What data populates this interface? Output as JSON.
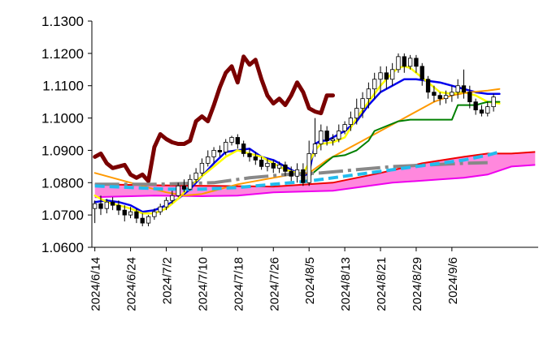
{
  "chart_data": {
    "type": "line",
    "title": "",
    "xlabel": "",
    "ylabel": "",
    "ylim": [
      1.06,
      1.13
    ],
    "y_ticks": [
      "1.0600",
      "1.0700",
      "1.0800",
      "1.0900",
      "1.1000",
      "1.1100",
      "1.1200",
      "1.1300"
    ],
    "x_tick_labels": [
      "2024/6/14",
      "2024/6/24",
      "2024/7/2",
      "2024/7/10",
      "2024/7/18",
      "2024/7/26",
      "2024/8/5",
      "2024/8/13",
      "2024/8/21",
      "2024/8/29",
      "2024/9/6"
    ],
    "x_tick_index": [
      0,
      6,
      12,
      18,
      24,
      30,
      36,
      42,
      48,
      54,
      60
    ],
    "n_points": 75,
    "grid": false,
    "legend": "none",
    "cloud": {
      "span_a": [
        [
          0,
          1.0795
        ],
        [
          10,
          1.0792
        ],
        [
          20,
          1.079
        ],
        [
          30,
          1.0788
        ],
        [
          40,
          1.08
        ],
        [
          48,
          1.083
        ],
        [
          55,
          1.086
        ],
        [
          62,
          1.088
        ],
        [
          66,
          1.089
        ],
        [
          70,
          1.089
        ],
        [
          74,
          1.0895
        ]
      ],
      "span_b": [
        [
          0,
          1.0755
        ],
        [
          10,
          1.076
        ],
        [
          18,
          1.0758
        ],
        [
          24,
          1.076
        ],
        [
          30,
          1.077
        ],
        [
          40,
          1.0775
        ],
        [
          46,
          1.079
        ],
        [
          50,
          1.08
        ],
        [
          58,
          1.081
        ],
        [
          62,
          1.0815
        ],
        [
          66,
          1.0825
        ],
        [
          70,
          1.085
        ],
        [
          74,
          1.0855
        ]
      ],
      "upper_color": "#ee0000",
      "lower_color": "#ee00ee",
      "fill_color": "#ff88dd"
    },
    "candles": [
      [
        0,
        1.072,
        1.0735,
        1.0745,
        1.0675
      ],
      [
        1,
        1.0735,
        1.072,
        1.076,
        1.07
      ],
      [
        2,
        1.072,
        1.074,
        1.075,
        1.0705
      ],
      [
        3,
        1.074,
        1.073,
        1.0755,
        1.0715
      ],
      [
        4,
        1.073,
        1.0715,
        1.0745,
        1.07
      ],
      [
        5,
        1.0715,
        1.07,
        1.073,
        1.068
      ],
      [
        6,
        1.07,
        1.071,
        1.0725,
        1.069
      ],
      [
        7,
        1.071,
        1.069,
        1.072,
        1.0675
      ],
      [
        8,
        1.069,
        1.0675,
        1.0705,
        1.0665
      ],
      [
        9,
        1.0675,
        1.0695,
        1.07,
        1.0665
      ],
      [
        10,
        1.0695,
        1.071,
        1.072,
        1.0685
      ],
      [
        11,
        1.071,
        1.0725,
        1.0735,
        1.07
      ],
      [
        12,
        1.0725,
        1.0745,
        1.0755,
        1.0715
      ],
      [
        13,
        1.0745,
        1.076,
        1.0775,
        1.0735
      ],
      [
        14,
        1.076,
        1.079,
        1.08,
        1.0755
      ],
      [
        15,
        1.079,
        1.078,
        1.081,
        1.077
      ],
      [
        16,
        1.078,
        1.081,
        1.0825,
        1.0775
      ],
      [
        17,
        1.081,
        1.083,
        1.0845,
        1.08
      ],
      [
        18,
        1.083,
        1.086,
        1.0875,
        1.082
      ],
      [
        19,
        1.086,
        1.088,
        1.09,
        1.085
      ],
      [
        20,
        1.088,
        1.09,
        1.091,
        1.086
      ],
      [
        21,
        1.09,
        1.0895,
        1.0915,
        1.088
      ],
      [
        22,
        1.0895,
        1.0925,
        1.0935,
        1.0885
      ],
      [
        23,
        1.0925,
        1.094,
        1.0945,
        1.0915
      ],
      [
        24,
        1.094,
        1.092,
        1.095,
        1.0905
      ],
      [
        25,
        1.092,
        1.089,
        1.093,
        1.088
      ],
      [
        26,
        1.089,
        1.088,
        1.0905,
        1.0865
      ],
      [
        27,
        1.088,
        1.087,
        1.0895,
        1.0855
      ],
      [
        28,
        1.087,
        1.085,
        1.088,
        1.084
      ],
      [
        29,
        1.085,
        1.086,
        1.0875,
        1.0835
      ],
      [
        30,
        1.086,
        1.0845,
        1.087,
        1.083
      ],
      [
        31,
        1.0845,
        1.0855,
        1.0865,
        1.083
      ],
      [
        32,
        1.0855,
        1.0835,
        1.0865,
        1.082
      ],
      [
        33,
        1.0835,
        1.082,
        1.085,
        1.0805
      ],
      [
        34,
        1.082,
        1.084,
        1.086,
        1.08
      ],
      [
        35,
        1.084,
        1.08,
        1.086,
        1.079
      ],
      [
        36,
        1.08,
        1.089,
        1.093,
        1.079
      ],
      [
        37,
        1.089,
        1.092,
        1.1,
        1.088
      ],
      [
        38,
        1.092,
        1.096,
        1.098,
        1.09
      ],
      [
        39,
        1.096,
        1.093,
        1.0975,
        1.0915
      ],
      [
        40,
        1.093,
        1.0935,
        1.095,
        1.0915
      ],
      [
        41,
        1.0935,
        1.096,
        1.098,
        1.0925
      ],
      [
        42,
        1.096,
        1.098,
        1.099,
        1.095
      ],
      [
        43,
        1.098,
        1.1,
        1.102,
        1.096
      ],
      [
        44,
        1.1,
        1.103,
        1.106,
        1.098
      ],
      [
        45,
        1.103,
        1.106,
        1.108,
        1.1
      ],
      [
        46,
        1.106,
        1.109,
        1.111,
        1.103
      ],
      [
        47,
        1.109,
        1.112,
        1.114,
        1.106
      ],
      [
        48,
        1.112,
        1.114,
        1.116,
        1.108
      ],
      [
        49,
        1.114,
        1.112,
        1.116,
        1.109
      ],
      [
        50,
        1.112,
        1.115,
        1.117,
        1.11
      ],
      [
        51,
        1.115,
        1.119,
        1.12,
        1.114
      ],
      [
        52,
        1.119,
        1.116,
        1.12,
        1.114
      ],
      [
        53,
        1.116,
        1.1185,
        1.1195,
        1.115
      ],
      [
        54,
        1.1185,
        1.116,
        1.1195,
        1.114
      ],
      [
        55,
        1.116,
        1.112,
        1.117,
        1.11
      ],
      [
        56,
        1.112,
        1.108,
        1.113,
        1.106
      ],
      [
        57,
        1.108,
        1.107,
        1.11,
        1.105
      ],
      [
        58,
        1.107,
        1.106,
        1.108,
        1.104
      ],
      [
        59,
        1.106,
        1.107,
        1.1085,
        1.1045
      ],
      [
        60,
        1.107,
        1.108,
        1.11,
        1.105
      ],
      [
        61,
        1.108,
        1.11,
        1.112,
        1.106
      ],
      [
        62,
        1.11,
        1.108,
        1.115,
        1.106
      ],
      [
        63,
        1.108,
        1.105,
        1.11,
        1.103
      ],
      [
        64,
        1.105,
        1.1025,
        1.106,
        1.101
      ],
      [
        65,
        1.1025,
        1.1015,
        1.104,
        1.1005
      ],
      [
        66,
        1.1015,
        1.1035,
        1.105,
        1.1005
      ],
      [
        67,
        1.1035,
        1.1065,
        1.1075,
        1.102
      ]
    ],
    "series": [
      {
        "color": "#7a0000",
        "width": 5,
        "points": [
          [
            0,
            1.088
          ],
          [
            1,
            1.089
          ],
          [
            2,
            1.086
          ],
          [
            3,
            1.0845
          ],
          [
            4,
            1.085
          ],
          [
            5,
            1.0855
          ],
          [
            6,
            1.0825
          ],
          [
            7,
            1.0815
          ],
          [
            8,
            1.0825
          ],
          [
            9,
            1.0805
          ],
          [
            10,
            1.091
          ],
          [
            11,
            1.095
          ],
          [
            12,
            1.0935
          ],
          [
            13,
            1.0925
          ],
          [
            14,
            1.092
          ],
          [
            15,
            1.092
          ],
          [
            16,
            1.093
          ],
          [
            17,
            1.099
          ],
          [
            18,
            1.1005
          ],
          [
            19,
            1.099
          ],
          [
            20,
            1.104
          ],
          [
            21,
            1.1095
          ],
          [
            22,
            1.114
          ],
          [
            23,
            1.116
          ],
          [
            24,
            1.111
          ],
          [
            25,
            1.119
          ],
          [
            26,
            1.1165
          ],
          [
            27,
            1.118
          ],
          [
            28,
            1.112
          ],
          [
            29,
            1.107
          ],
          [
            30,
            1.1045
          ],
          [
            31,
            1.106
          ],
          [
            32,
            1.104
          ],
          [
            33,
            1.107
          ],
          [
            34,
            1.111
          ],
          [
            35,
            1.108
          ],
          [
            36,
            1.103
          ],
          [
            37,
            1.102
          ],
          [
            38,
            1.1015
          ],
          [
            39,
            1.107
          ],
          [
            40,
            1.107
          ]
        ]
      },
      {
        "color": "#0000ee",
        "width": 2.5,
        "points": [
          [
            0,
            1.074
          ],
          [
            2,
            1.0745
          ],
          [
            4,
            1.074
          ],
          [
            6,
            1.073
          ],
          [
            8,
            1.071
          ],
          [
            10,
            1.0715
          ],
          [
            12,
            1.073
          ],
          [
            14,
            1.075
          ],
          [
            16,
            1.078
          ],
          [
            18,
            1.082
          ],
          [
            20,
            1.086
          ],
          [
            22,
            1.0895
          ],
          [
            24,
            1.09
          ],
          [
            26,
            1.0905
          ],
          [
            28,
            1.088
          ],
          [
            30,
            1.087
          ],
          [
            32,
            1.085
          ],
          [
            34,
            1.083
          ],
          [
            35,
            1.082
          ],
          [
            36,
            1.083
          ],
          [
            37,
            1.092
          ],
          [
            38,
            1.093
          ],
          [
            39,
            1.093
          ],
          [
            40,
            1.094
          ],
          [
            42,
            1.096
          ],
          [
            44,
            1.099
          ],
          [
            46,
            1.104
          ],
          [
            48,
            1.108
          ],
          [
            50,
            1.11
          ],
          [
            52,
            1.112
          ],
          [
            54,
            1.112
          ],
          [
            56,
            1.1115
          ],
          [
            58,
            1.111
          ],
          [
            60,
            1.11
          ],
          [
            62,
            1.109
          ],
          [
            64,
            1.108
          ],
          [
            66,
            1.1075
          ],
          [
            68,
            1.1075
          ]
        ]
      },
      {
        "color": "#ffff00",
        "width": 2.5,
        "points": [
          [
            0,
            1.076
          ],
          [
            2,
            1.074
          ],
          [
            4,
            1.073
          ],
          [
            6,
            1.072
          ],
          [
            8,
            1.0705
          ],
          [
            10,
            1.0705
          ],
          [
            12,
            1.072
          ],
          [
            14,
            1.075
          ],
          [
            16,
            1.079
          ],
          [
            18,
            1.082
          ],
          [
            20,
            1.085
          ],
          [
            22,
            1.088
          ],
          [
            24,
            1.09
          ],
          [
            26,
            1.089
          ],
          [
            28,
            1.088
          ],
          [
            30,
            1.086
          ],
          [
            32,
            1.084
          ],
          [
            34,
            1.083
          ],
          [
            35,
            1.083
          ],
          [
            36,
            1.086
          ],
          [
            37,
            1.09
          ],
          [
            38,
            1.092
          ],
          [
            40,
            1.0925
          ],
          [
            42,
            1.094
          ],
          [
            44,
            1.1
          ],
          [
            46,
            1.105
          ],
          [
            48,
            1.11
          ],
          [
            50,
            1.114
          ],
          [
            51,
            1.1155
          ],
          [
            52,
            1.116
          ],
          [
            53,
            1.1155
          ],
          [
            54,
            1.114
          ],
          [
            56,
            1.111
          ],
          [
            58,
            1.108
          ],
          [
            60,
            1.1075
          ],
          [
            62,
            1.108
          ],
          [
            64,
            1.107
          ],
          [
            66,
            1.105
          ],
          [
            68,
            1.1045
          ]
        ]
      },
      {
        "color": "#ff9900",
        "width": 2,
        "points": [
          [
            0,
            1.083
          ],
          [
            3,
            1.0815
          ],
          [
            6,
            1.08
          ],
          [
            9,
            1.0785
          ],
          [
            12,
            1.077
          ],
          [
            15,
            1.076
          ],
          [
            18,
            1.0765
          ],
          [
            21,
            1.078
          ],
          [
            24,
            1.0795
          ],
          [
            27,
            1.0805
          ],
          [
            30,
            1.0815
          ],
          [
            33,
            1.0825
          ],
          [
            36,
            1.083
          ],
          [
            39,
            1.087
          ],
          [
            42,
            1.09
          ],
          [
            45,
            1.093
          ],
          [
            48,
            1.096
          ],
          [
            51,
            1.099
          ],
          [
            54,
            1.102
          ],
          [
            57,
            1.105
          ],
          [
            60,
            1.107
          ],
          [
            63,
            1.108
          ],
          [
            66,
            1.1085
          ],
          [
            68,
            1.109
          ]
        ]
      },
      {
        "color": "#008000",
        "width": 2,
        "points": [
          [
            36,
            1.082
          ],
          [
            38,
            1.085
          ],
          [
            40,
            1.088
          ],
          [
            42,
            1.0885
          ],
          [
            44,
            1.09
          ],
          [
            46,
            1.093
          ],
          [
            47,
            1.096
          ],
          [
            49,
            1.0975
          ],
          [
            51,
            1.099
          ],
          [
            53,
            1.0995
          ],
          [
            55,
            1.0995
          ],
          [
            57,
            1.0995
          ],
          [
            59,
            1.0995
          ],
          [
            60,
            1.0995
          ],
          [
            61,
            1.104
          ],
          [
            64,
            1.104
          ],
          [
            66,
            1.105
          ],
          [
            68,
            1.105
          ]
        ]
      }
    ],
    "dashed_series": [
      {
        "color": "#888888",
        "width": 4,
        "dash": "30,6,4,6",
        "points": [
          [
            0,
            1.0795
          ],
          [
            10,
            1.0795
          ],
          [
            20,
            1.08
          ],
          [
            26,
            1.0815
          ],
          [
            32,
            1.0825
          ],
          [
            38,
            1.083
          ],
          [
            44,
            1.084
          ],
          [
            50,
            1.085
          ],
          [
            56,
            1.0855
          ],
          [
            62,
            1.086
          ],
          [
            66,
            1.0862
          ]
        ]
      },
      {
        "color": "#22bbee",
        "width": 4,
        "dash": "12,6",
        "points": [
          [
            0,
            1.079
          ],
          [
            6,
            1.0785
          ],
          [
            12,
            1.078
          ],
          [
            18,
            1.078
          ],
          [
            24,
            1.0785
          ],
          [
            30,
            1.0795
          ],
          [
            36,
            1.0805
          ],
          [
            42,
            1.082
          ],
          [
            48,
            1.0835
          ],
          [
            54,
            1.085
          ],
          [
            58,
            1.086
          ],
          [
            62,
            1.087
          ],
          [
            66,
            1.0885
          ],
          [
            68,
            1.0895
          ]
        ]
      }
    ]
  }
}
